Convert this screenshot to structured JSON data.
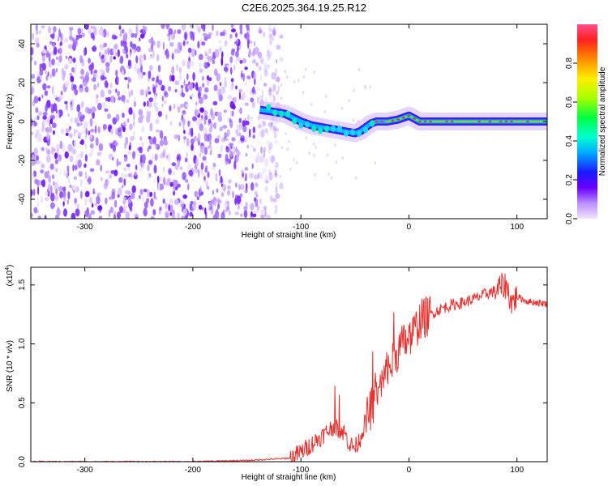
{
  "title": "C2E6.2025.364.19.25.R12",
  "chart_data": [
    {
      "type": "heatmap",
      "name": "spectrogram",
      "xlabel": "Height of straight line (km)",
      "ylabel": "Frequency (Hz)",
      "xlim": [
        -350,
        128
      ],
      "ylim": [
        -50,
        50
      ],
      "xticks": [
        -300,
        -200,
        -100,
        0,
        100
      ],
      "yticks": [
        -40,
        -20,
        0,
        20,
        40
      ],
      "colorbar": {
        "label": "Normalized spectral amplitude",
        "range": [
          0.0,
          1.0
        ],
        "ticks": [
          0.0,
          0.2,
          0.4,
          0.6,
          0.8
        ]
      },
      "noise_region_x": [
        -350,
        -130
      ],
      "trace": {
        "x": [
          -138,
          -125,
          -115,
          -100,
          -90,
          -80,
          -70,
          -60,
          -50,
          -45,
          -40,
          -35,
          -30,
          -20,
          -10,
          0,
          10,
          30,
          60,
          90,
          128
        ],
        "freq": [
          6,
          5,
          4,
          0,
          -2,
          -3,
          -4,
          -5,
          -6,
          -5,
          -3,
          -1,
          0,
          0,
          1,
          3,
          0,
          0,
          0,
          0,
          0
        ]
      }
    },
    {
      "type": "line",
      "name": "snr",
      "xlabel": "Height of straight line (km)",
      "ylabel": "SNR (10 * v/v)",
      "scale_label": "(x10",
      "scale_exp": "4",
      "xlim": [
        -350,
        128
      ],
      "ylim": [
        0,
        1.65
      ],
      "xticks": [
        -300,
        -200,
        -100,
        0,
        100
      ],
      "yticks": [
        "0.0",
        "0.5",
        "1.0",
        "1.5"
      ],
      "color": "#e8312e",
      "series": [
        {
          "name": "SNR",
          "x": [
            -350,
            -300,
            -250,
            -200,
            -150,
            -110,
            -100,
            -90,
            -80,
            -70,
            -60,
            -55,
            -50,
            -45,
            -40,
            -35,
            -30,
            -25,
            -20,
            -15,
            -10,
            -5,
            0,
            5,
            10,
            20,
            30,
            40,
            50,
            60,
            70,
            80,
            85,
            90,
            95,
            100,
            110,
            128
          ],
          "y": [
            0.0,
            0.0,
            0.0,
            0.0,
            0.01,
            0.03,
            0.08,
            0.15,
            0.22,
            0.3,
            0.25,
            0.15,
            0.12,
            0.2,
            0.35,
            0.45,
            0.55,
            0.65,
            0.75,
            0.85,
            0.95,
            1.0,
            1.05,
            1.1,
            1.2,
            1.25,
            1.3,
            1.33,
            1.35,
            1.38,
            1.42,
            1.45,
            1.48,
            1.5,
            1.35,
            1.4,
            1.36,
            1.34
          ]
        }
      ]
    }
  ]
}
